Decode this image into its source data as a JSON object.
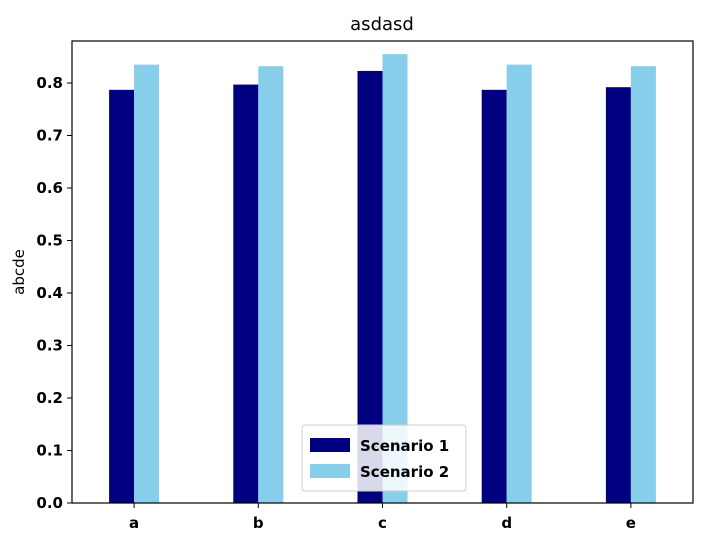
{
  "chart_data": {
    "type": "bar",
    "title": "asdasd",
    "xlabel": "",
    "ylabel": "abcde",
    "categories": [
      "a",
      "b",
      "c",
      "d",
      "e"
    ],
    "series": [
      {
        "name": "Scenario 1",
        "color": "#000080",
        "values": [
          0.787,
          0.797,
          0.823,
          0.787,
          0.792
        ]
      },
      {
        "name": "Scenario 2",
        "color": "#87ceeb",
        "values": [
          0.835,
          0.832,
          0.855,
          0.835,
          0.832
        ]
      }
    ],
    "ylim": [
      0,
      0.88
    ],
    "yticks": [
      0.0,
      0.1,
      0.2,
      0.3,
      0.4,
      0.5,
      0.6,
      0.7,
      0.8
    ],
    "ytick_labels": [
      "0.0",
      "0.1",
      "0.2",
      "0.3",
      "0.4",
      "0.5",
      "0.6",
      "0.7",
      "0.8"
    ],
    "grid": false,
    "legend_position": "bottom-center"
  }
}
